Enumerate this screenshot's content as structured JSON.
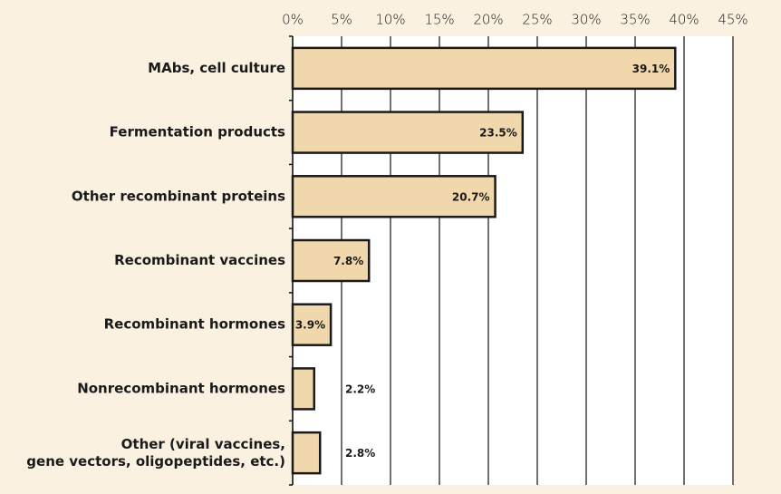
{
  "chart_data": {
    "type": "barh",
    "categories": [
      "MAbs, cell culture",
      "Fermentation products",
      "Other recombinant proteins",
      "Recombinant vaccines",
      "Recombinant hormones",
      "Nonrecombinant hormones",
      "Other (viral vaccines,\ngene vectors, oligopeptides, etc.)"
    ],
    "values": [
      39.1,
      23.5,
      20.7,
      7.8,
      3.9,
      2.2,
      2.8
    ],
    "value_labels": [
      "39.1%",
      "23.5%",
      "20.7%",
      "7.8%",
      "3.9%",
      "2.2%",
      "2.8%"
    ],
    "color": "#f0d7ac",
    "xlim": [
      0,
      45
    ],
    "xticks": [
      {
        "value": 0,
        "label": "0%"
      },
      {
        "value": 5,
        "label": "5%"
      },
      {
        "value": 10,
        "label": "10%"
      },
      {
        "value": 15,
        "label": "15%"
      },
      {
        "value": 20,
        "label": "20%"
      },
      {
        "value": 25,
        "label": "25%"
      },
      {
        "value": 30,
        "label": "30%"
      },
      {
        "value": 35,
        "label": "35%"
      },
      {
        "value": 40,
        "label": "40%"
      },
      {
        "value": 45,
        "label": "45%"
      }
    ],
    "grid": true
  }
}
